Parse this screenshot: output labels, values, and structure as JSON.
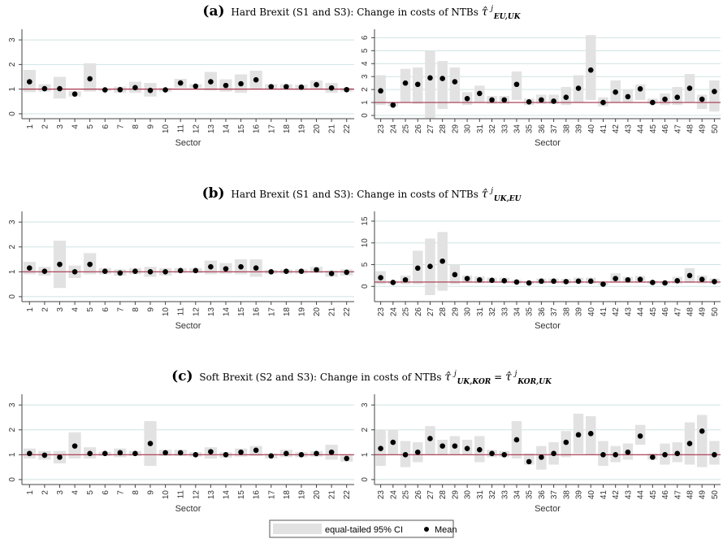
{
  "panels": [
    {
      "letter": "(a)",
      "title": "Hard Brexit (S1 and S3): Change in costs of NTBs ",
      "symbol": "τ̂",
      "sup": "j",
      "sub": "EU,UK"
    },
    {
      "letter": "(b)",
      "title": "Hard Brexit (S1 and S3): Change in costs of NTBs ",
      "symbol": "τ̂",
      "sup": "j",
      "sub": "UK,EU"
    },
    {
      "letter": "(c)",
      "title": "Soft Brexit (S2 and S3): Change in costs of NTBs ",
      "symbol": "τ̂",
      "sup": "j",
      "sub": "UK,KOR",
      "eq": " = ",
      "symbol2": "τ̂",
      "sup2": "j",
      "sub2": "KOR,UK"
    }
  ],
  "legend": {
    "ci_label": "equal-tailed 95% CI",
    "mean_label": "Mean",
    "ci_color": "#e2e2e2",
    "mean_color": "#000000"
  },
  "colors": {
    "refline": "#a8344c",
    "grid": "#cfe3e3",
    "ci": "#e2e2e2",
    "point": "#000000"
  },
  "chart_data": [
    {
      "type": "scatter",
      "panel": "a",
      "xlabel": "Sector",
      "ylabel": "",
      "ylim": [
        -0.2,
        3.3
      ],
      "yticks": [
        0,
        1,
        2,
        3
      ],
      "refline": 1,
      "categories": [
        "1",
        "2",
        "3",
        "4",
        "5",
        "6",
        "7",
        "8",
        "9",
        "10",
        "11",
        "12",
        "13",
        "14",
        "15",
        "16",
        "17",
        "18",
        "19",
        "20",
        "21",
        "22"
      ],
      "mean": [
        1.3,
        1.02,
        1.02,
        0.8,
        1.42,
        0.97,
        0.98,
        1.06,
        0.95,
        0.97,
        1.25,
        1.12,
        1.3,
        1.15,
        1.22,
        1.38,
        1.1,
        1.1,
        1.08,
        1.18,
        1.05,
        0.98
      ],
      "ci_low": [
        0.88,
        0.9,
        0.62,
        0.7,
        0.9,
        0.92,
        0.85,
        0.85,
        0.7,
        0.9,
        1.05,
        1.05,
        0.95,
        0.9,
        0.85,
        1.0,
        1.0,
        1.0,
        0.97,
        1.0,
        0.85,
        0.9
      ],
      "ci_high": [
        1.78,
        1.2,
        1.5,
        0.92,
        2.05,
        1.02,
        1.1,
        1.3,
        1.25,
        1.05,
        1.42,
        1.2,
        1.7,
        1.4,
        1.6,
        1.75,
        1.2,
        1.2,
        1.18,
        1.35,
        1.25,
        1.05
      ]
    },
    {
      "type": "scatter",
      "panel": "a",
      "xlabel": "Sector",
      "ylabel": "",
      "ylim": [
        -0.25,
        6.4
      ],
      "yticks": [
        0,
        1,
        2,
        3,
        4,
        5,
        6
      ],
      "refline": 1,
      "categories": [
        "23",
        "24",
        "25",
        "26",
        "27",
        "28",
        "29",
        "30",
        "31",
        "32",
        "33",
        "34",
        "35",
        "36",
        "37",
        "38",
        "39",
        "40",
        "41",
        "42",
        "43",
        "44",
        "45",
        "46",
        "47",
        "48",
        "49",
        "50"
      ],
      "mean": [
        1.9,
        0.8,
        2.5,
        2.4,
        2.9,
        2.85,
        2.6,
        1.3,
        1.7,
        1.2,
        1.2,
        2.4,
        1.05,
        1.2,
        1.1,
        1.4,
        2.1,
        3.5,
        1.0,
        1.8,
        1.45,
        2.05,
        1.0,
        1.25,
        1.4,
        2.1,
        1.25,
        1.85
      ],
      "ci_low": [
        0.8,
        0.7,
        1.0,
        0.9,
        -0.2,
        0.5,
        1.0,
        0.8,
        1.0,
        0.9,
        0.9,
        1.2,
        0.8,
        0.9,
        0.9,
        0.8,
        1.0,
        1.2,
        0.7,
        1.0,
        1.0,
        1.2,
        0.9,
        0.8,
        0.8,
        1.0,
        0.5,
        0.3
      ],
      "ci_high": [
        3.1,
        1.0,
        3.6,
        3.7,
        5.0,
        4.2,
        3.7,
        1.8,
        2.3,
        1.5,
        1.5,
        3.4,
        1.3,
        1.6,
        1.6,
        2.2,
        3.1,
        6.2,
        1.4,
        2.7,
        2.0,
        2.4,
        1.3,
        1.7,
        2.2,
        3.2,
        1.6,
        2.7
      ]
    },
    {
      "type": "scatter",
      "panel": "b",
      "xlabel": "Sector",
      "ylabel": "",
      "ylim": [
        -0.2,
        3.3
      ],
      "yticks": [
        0,
        1,
        2,
        3
      ],
      "refline": 1,
      "categories": [
        "1",
        "2",
        "3",
        "4",
        "5",
        "6",
        "7",
        "8",
        "9",
        "10",
        "11",
        "12",
        "13",
        "14",
        "15",
        "16",
        "17",
        "18",
        "19",
        "20",
        "21",
        "22"
      ],
      "mean": [
        1.15,
        1.02,
        1.3,
        1.0,
        1.3,
        1.02,
        0.95,
        1.02,
        1.0,
        1.0,
        1.05,
        1.05,
        1.2,
        1.12,
        1.2,
        1.15,
        1.0,
        1.02,
        1.02,
        1.08,
        0.93,
        0.98
      ],
      "ci_low": [
        0.9,
        0.85,
        0.35,
        0.75,
        0.9,
        0.9,
        0.85,
        0.9,
        0.8,
        0.85,
        0.95,
        0.95,
        0.9,
        0.92,
        0.9,
        0.8,
        0.92,
        0.92,
        0.92,
        0.95,
        0.8,
        0.85
      ],
      "ci_high": [
        1.4,
        1.2,
        2.25,
        1.25,
        1.75,
        1.15,
        1.1,
        1.15,
        1.2,
        1.15,
        1.15,
        1.15,
        1.45,
        1.35,
        1.5,
        1.5,
        1.08,
        1.1,
        1.1,
        1.2,
        1.05,
        1.1
      ]
    },
    {
      "type": "scatter",
      "panel": "b",
      "xlabel": "Sector",
      "ylabel": "",
      "ylim": [
        -3.5,
        16.5
      ],
      "yticks": [
        0,
        5,
        10,
        15
      ],
      "refline": 1,
      "categories": [
        "23",
        "24",
        "25",
        "26",
        "27",
        "28",
        "29",
        "30",
        "31",
        "32",
        "33",
        "34",
        "35",
        "36",
        "37",
        "38",
        "39",
        "40",
        "41",
        "42",
        "43",
        "44",
        "45",
        "46",
        "47",
        "48",
        "49",
        "50"
      ],
      "mean": [
        2.0,
        0.9,
        1.5,
        4.2,
        4.6,
        5.8,
        2.7,
        1.8,
        1.5,
        1.4,
        1.3,
        1.0,
        0.8,
        1.2,
        1.2,
        1.1,
        1.2,
        1.2,
        0.5,
        1.8,
        1.5,
        1.6,
        0.9,
        0.8,
        1.3,
        2.5,
        1.6,
        1.1
      ],
      "ci_low": [
        0.5,
        0.6,
        0.5,
        0.5,
        -2.0,
        -1.0,
        0.5,
        0.8,
        0.7,
        0.8,
        0.8,
        0.6,
        0.5,
        0.6,
        0.7,
        0.6,
        0.7,
        0.6,
        0.3,
        0.8,
        0.8,
        0.8,
        0.6,
        0.5,
        0.6,
        0.8,
        0.7,
        0.6
      ],
      "ci_high": [
        3.5,
        1.2,
        2.5,
        8.2,
        11.0,
        12.5,
        5.0,
        2.5,
        2.3,
        2.0,
        2.0,
        1.5,
        1.2,
        1.8,
        1.8,
        1.7,
        2.0,
        2.0,
        0.8,
        3.0,
        2.2,
        2.4,
        1.3,
        1.2,
        2.2,
        4.2,
        2.5,
        1.8
      ]
    },
    {
      "type": "scatter",
      "panel": "c",
      "xlabel": "Sector",
      "ylabel": "",
      "ylim": [
        -0.2,
        3.3
      ],
      "yticks": [
        0,
        1,
        2,
        3
      ],
      "refline": 1,
      "categories": [
        "1",
        "2",
        "3",
        "4",
        "5",
        "6",
        "7",
        "8",
        "9",
        "10",
        "11",
        "12",
        "13",
        "14",
        "15",
        "16",
        "17",
        "18",
        "19",
        "20",
        "21",
        "22"
      ],
      "mean": [
        1.05,
        0.98,
        0.9,
        1.35,
        1.05,
        1.05,
        1.08,
        1.05,
        1.45,
        1.08,
        1.08,
        1.0,
        1.12,
        1.0,
        1.1,
        1.18,
        0.95,
        1.05,
        1.0,
        1.05,
        1.1,
        0.85
      ],
      "ci_low": [
        0.85,
        0.8,
        0.65,
        0.85,
        0.85,
        0.95,
        0.9,
        0.95,
        0.55,
        0.95,
        0.95,
        0.92,
        0.85,
        0.88,
        0.92,
        0.95,
        0.85,
        0.9,
        0.9,
        0.92,
        0.8,
        0.72
      ],
      "ci_high": [
        1.25,
        1.15,
        1.15,
        1.9,
        1.3,
        1.12,
        1.25,
        1.15,
        2.35,
        1.2,
        1.2,
        1.1,
        1.3,
        1.1,
        1.25,
        1.35,
        1.05,
        1.2,
        1.1,
        1.15,
        1.4,
        1.0
      ]
    },
    {
      "type": "scatter",
      "panel": "c",
      "xlabel": "Sector",
      "ylabel": "",
      "ylim": [
        -0.2,
        3.3
      ],
      "yticks": [
        0,
        1,
        2,
        3
      ],
      "refline": 1,
      "categories": [
        "23",
        "24",
        "25",
        "26",
        "27",
        "28",
        "29",
        "30",
        "31",
        "32",
        "33",
        "34",
        "35",
        "36",
        "37",
        "38",
        "39",
        "40",
        "41",
        "42",
        "43",
        "44",
        "45",
        "46",
        "47",
        "48",
        "49",
        "50"
      ],
      "mean": [
        1.25,
        1.5,
        1.0,
        1.1,
        1.65,
        1.35,
        1.35,
        1.25,
        1.2,
        1.05,
        1.0,
        1.6,
        0.72,
        0.9,
        1.05,
        1.5,
        1.8,
        1.85,
        1.0,
        1.0,
        1.1,
        1.75,
        0.9,
        1.0,
        1.05,
        1.45,
        1.95,
        1.0
      ],
      "ci_low": [
        0.55,
        1.0,
        0.5,
        0.7,
        1.0,
        1.0,
        1.0,
        1.0,
        0.7,
        0.9,
        0.9,
        0.85,
        0.6,
        0.4,
        0.6,
        0.9,
        1.05,
        1.0,
        0.55,
        0.7,
        0.8,
        1.4,
        0.8,
        0.6,
        0.7,
        0.6,
        0.5,
        0.6
      ],
      "ci_high": [
        2.0,
        2.0,
        1.55,
        1.5,
        2.15,
        1.6,
        1.75,
        1.6,
        1.75,
        1.2,
        1.15,
        2.35,
        1.05,
        1.35,
        1.5,
        1.95,
        2.65,
        2.55,
        1.55,
        1.35,
        1.45,
        2.2,
        1.05,
        1.45,
        1.5,
        2.3,
        2.6,
        1.55
      ]
    }
  ]
}
